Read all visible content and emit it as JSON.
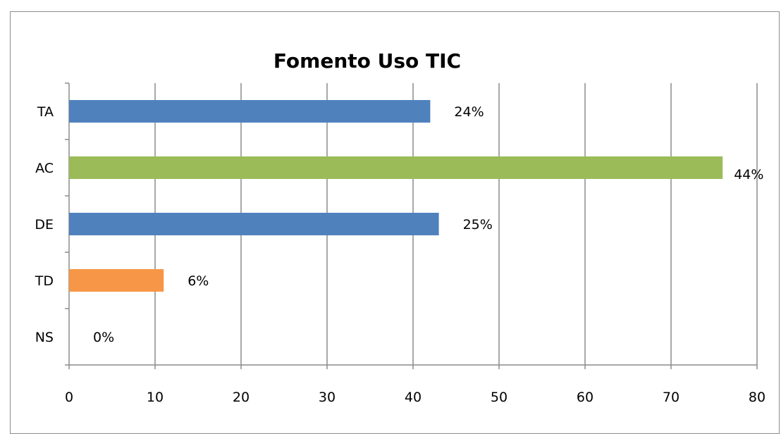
{
  "chart_data": {
    "type": "bar",
    "orientation": "horizontal",
    "title": "Fomento Uso TIC",
    "categories": [
      "TA",
      "AC",
      "DE",
      "TD",
      "NS"
    ],
    "values": [
      42,
      76,
      43,
      11,
      0
    ],
    "data_labels": [
      "24%",
      "44%",
      "25%",
      "6%",
      "0%"
    ],
    "bar_colors": [
      "#4f81bd",
      "#9bbb59",
      "#4f81bd",
      "#f79646",
      "#4f81bd"
    ],
    "xlim": [
      0,
      80
    ],
    "x_ticks": [
      0,
      10,
      20,
      30,
      40,
      50,
      60,
      70,
      80
    ],
    "grid": true,
    "legend": "none",
    "xlabel": "",
    "ylabel": ""
  }
}
